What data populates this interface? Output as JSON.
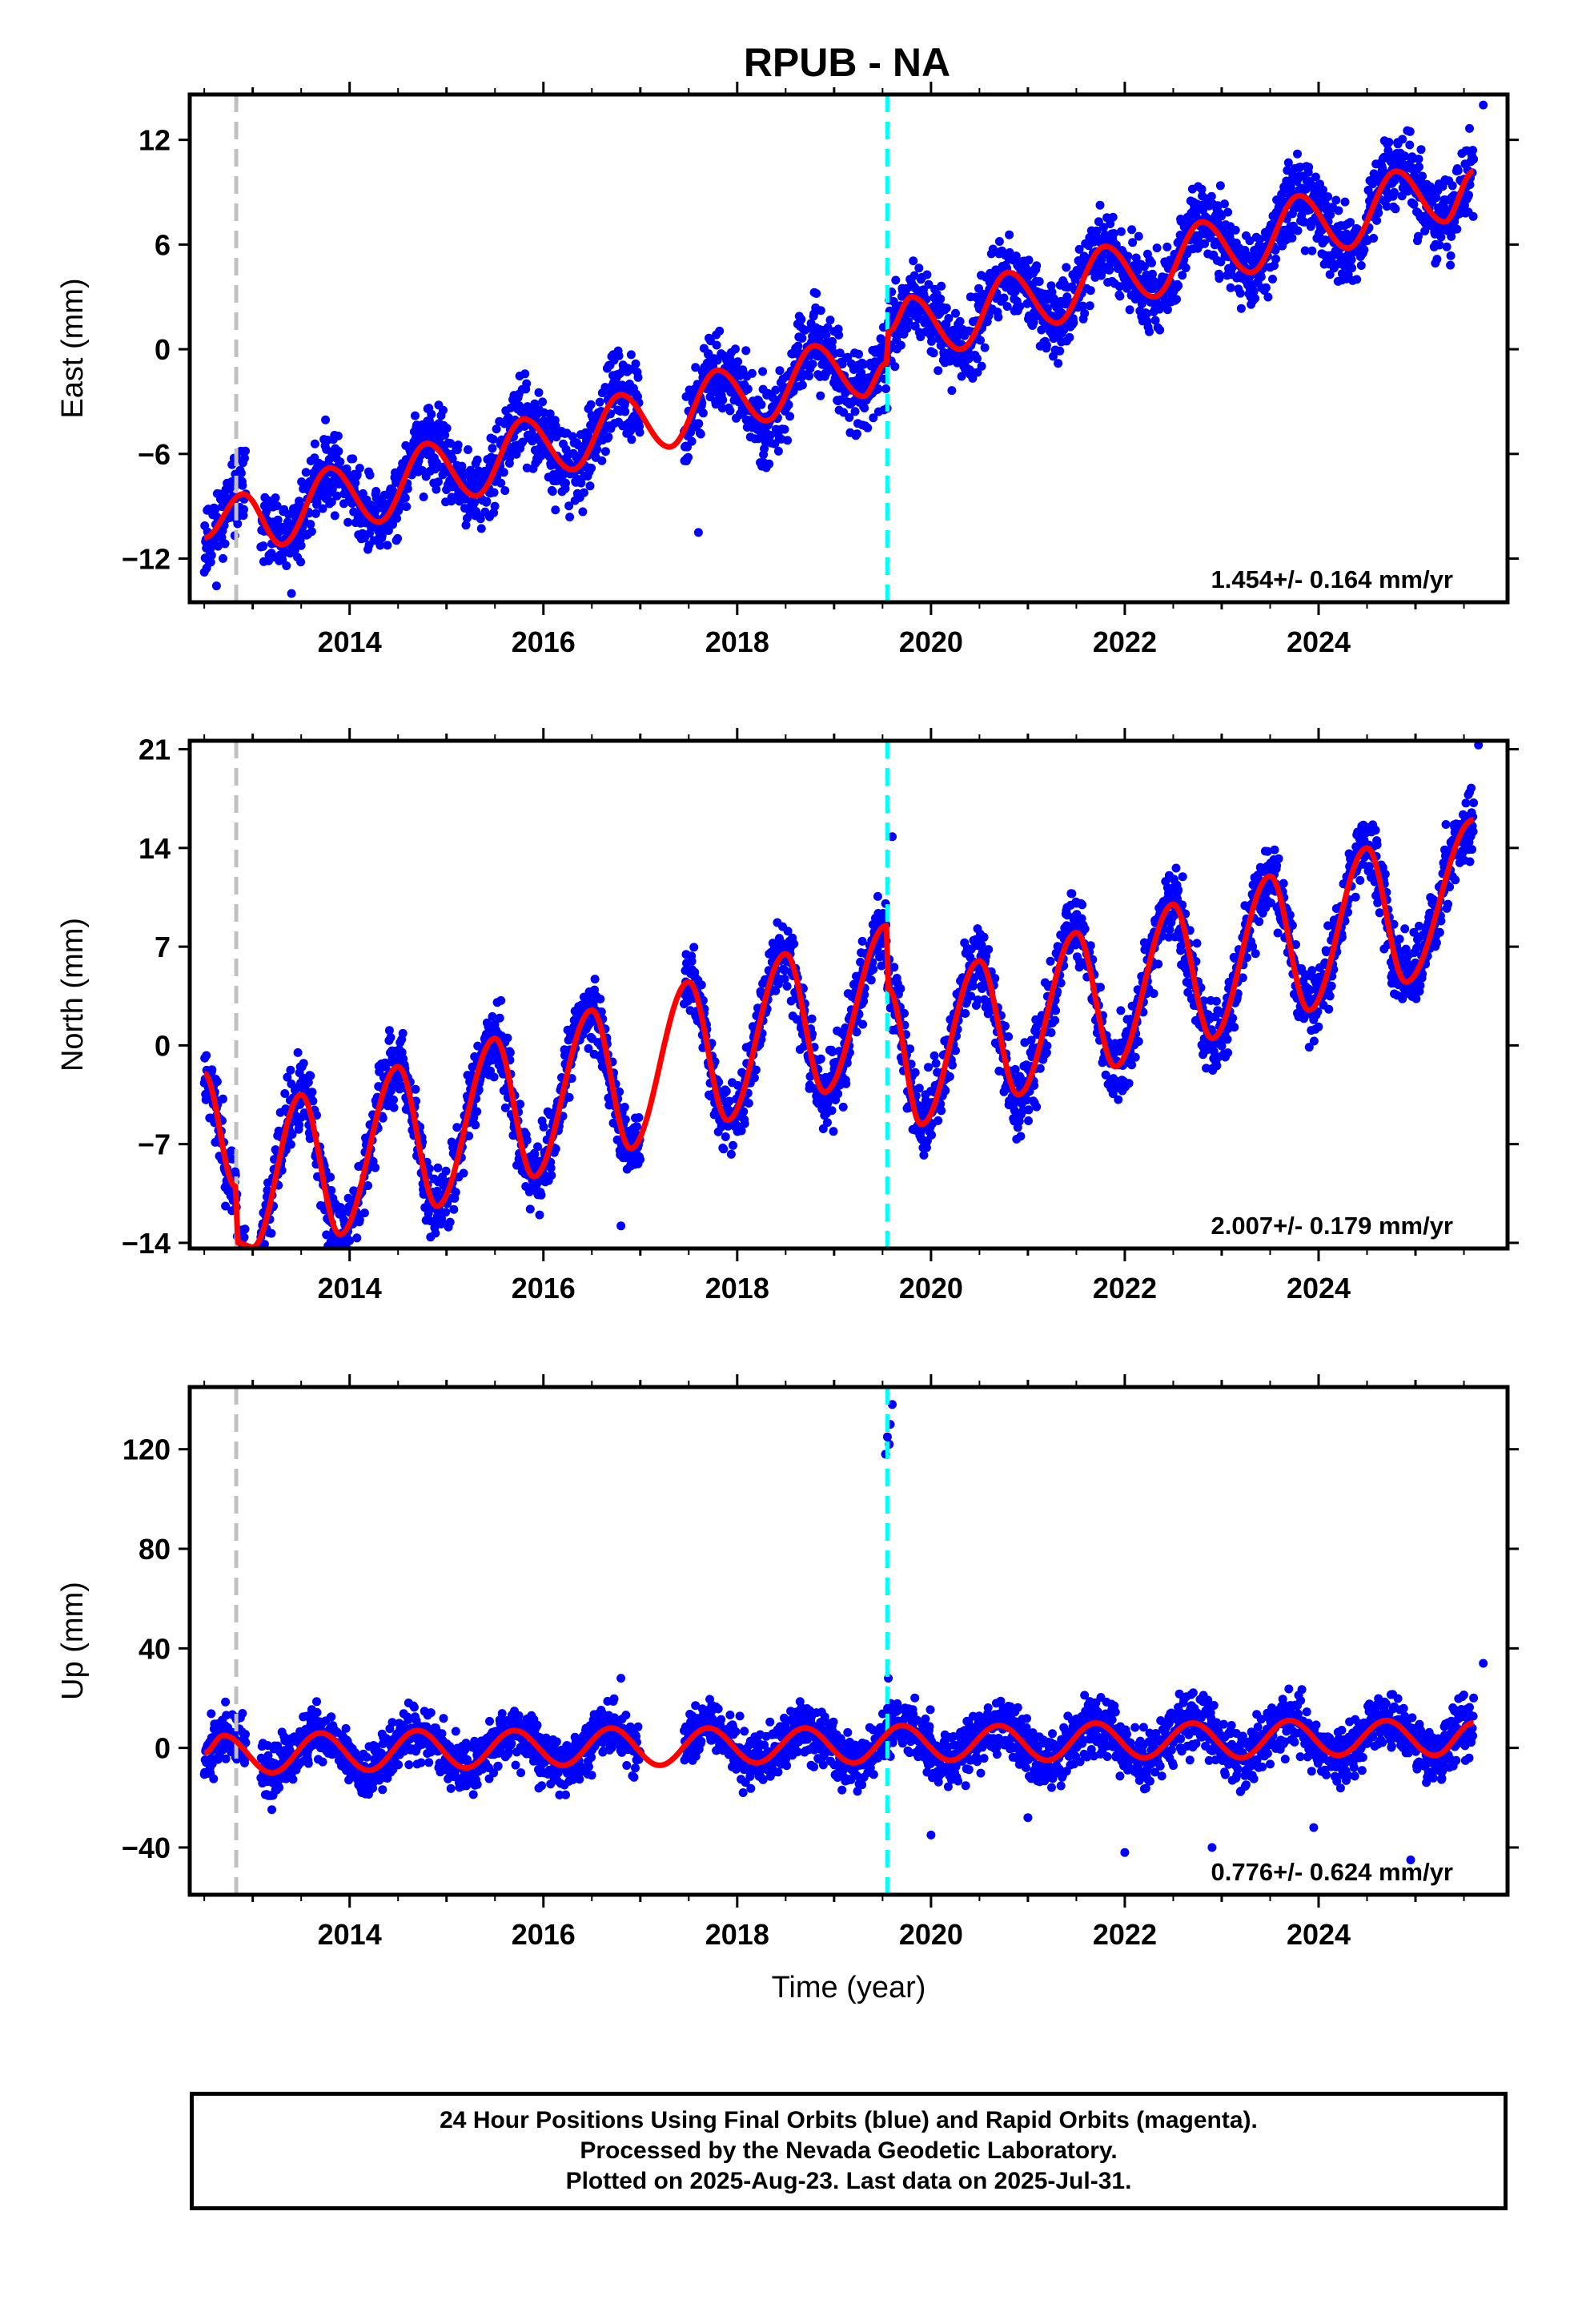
{
  "title": "RPUB - NA",
  "xlabel": "Time (year)",
  "footer": {
    "line1": "24 Hour Positions Using Final Orbits (blue) and Rapid Orbits (magenta).",
    "line2": "Processed by the Nevada Geodetic Laboratory.",
    "line3": "Plotted on 2025-Aug-23. Last data on 2025-Jul-31."
  },
  "colors": {
    "points": "#0000ff",
    "model": "#ff0000",
    "equipment_change": "#00ffff",
    "antenna_change": "#c0c0c0"
  },
  "chart_data": [
    {
      "type": "scatter",
      "component": "East",
      "ylabel": "East (mm)",
      "ylim": [
        -14.5,
        14.6
      ],
      "yticks": [
        -12,
        -6,
        0,
        6,
        12
      ],
      "xlim": [
        2012.35,
        2025.95
      ],
      "xticks": [
        2014,
        2016,
        2018,
        2020,
        2022,
        2024
      ],
      "rate_label": "1.454+/- 0.164 mm/yr",
      "vlines": [
        {
          "x": 2012.83,
          "color": "#c0c0c0"
        },
        {
          "x": 2019.55,
          "color": "#00ffff"
        }
      ],
      "model_x": [
        2012.5,
        2012.9,
        2013.3,
        2013.8,
        2014.3,
        2014.8,
        2015.3,
        2015.8,
        2016.3,
        2016.8,
        2017.3,
        2017.8,
        2018.3,
        2018.8,
        2019.3,
        2019.54,
        2019.56,
        2019.8,
        2020.3,
        2020.8,
        2021.3,
        2021.8,
        2022.3,
        2022.8,
        2023.3,
        2023.8,
        2024.3,
        2024.8,
        2025.3,
        2025.6
      ],
      "model_y": [
        -10.8,
        -8.3,
        -11.2,
        -6.8,
        -9.9,
        -5.4,
        -8.4,
        -4.0,
        -6.9,
        -2.6,
        -5.6,
        -1.2,
        -4.1,
        0.2,
        -2.7,
        -0.8,
        1.0,
        3.0,
        0.0,
        4.4,
        1.5,
        5.9,
        3.0,
        7.3,
        4.4,
        8.8,
        5.8,
        10.2,
        7.3,
        10.2
      ],
      "points_seed": 11,
      "points_noise": 1.1,
      "outliers": [
        {
          "x": 2013.4,
          "y": -14.0
        },
        {
          "x": 2017.6,
          "y": -10.5
        },
        {
          "x": 2025.7,
          "y": 14.0
        }
      ]
    },
    {
      "type": "scatter",
      "component": "North",
      "ylabel": "North (mm)",
      "ylim": [
        -14.4,
        21.6
      ],
      "yticks": [
        -14,
        -7,
        0,
        7,
        14,
        21
      ],
      "xlim": [
        2012.35,
        2025.95
      ],
      "xticks": [
        2014,
        2016,
        2018,
        2020,
        2022,
        2024
      ],
      "rate_label": "2.007+/- 0.179 mm/yr",
      "vlines": [
        {
          "x": 2012.83,
          "color": "#c0c0c0"
        },
        {
          "x": 2019.55,
          "color": "#00ffff"
        }
      ],
      "model_x": [
        2012.5,
        2012.82,
        2012.85,
        2013.0,
        2013.5,
        2013.9,
        2014.5,
        2014.9,
        2015.5,
        2015.9,
        2016.5,
        2016.9,
        2017.5,
        2017.9,
        2018.5,
        2018.9,
        2019.54,
        2019.56,
        2019.9,
        2020.5,
        2020.9,
        2021.5,
        2021.9,
        2022.5,
        2022.9,
        2023.5,
        2023.9,
        2024.5,
        2024.9,
        2025.6
      ],
      "model_y": [
        -2.0,
        -10.0,
        -14.0,
        -14.3,
        -3.5,
        -13.4,
        -1.5,
        -11.4,
        0.5,
        -9.3,
        2.5,
        -7.3,
        4.5,
        -5.3,
        6.5,
        -3.3,
        8.5,
        4.0,
        -5.6,
        6.0,
        -3.5,
        8.0,
        -1.5,
        10.0,
        0.5,
        12.0,
        2.5,
        14.0,
        4.5,
        16.0
      ],
      "points_seed": 23,
      "points_noise": 1.3,
      "outliers": [
        {
          "x": 2019.6,
          "y": 14.8
        },
        {
          "x": 2025.65,
          "y": 21.3
        },
        {
          "x": 2016.8,
          "y": -12.8
        }
      ]
    },
    {
      "type": "scatter",
      "component": "Up",
      "ylabel": "Up (mm)",
      "ylim": [
        -59,
        145
      ],
      "yticks": [
        -40,
        0,
        40,
        80,
        120
      ],
      "xlim": [
        2012.35,
        2025.95
      ],
      "xticks": [
        2014,
        2016,
        2018,
        2020,
        2022,
        2024
      ],
      "rate_label": "0.776+/- 0.624 mm/yr",
      "vlines": [
        {
          "x": 2012.83,
          "color": "#c0c0c0"
        },
        {
          "x": 2019.55,
          "color": "#00ffff"
        }
      ],
      "model_x": [
        2012.5,
        2012.7,
        2013.2,
        2013.7,
        2014.2,
        2014.7,
        2015.2,
        2015.7,
        2016.2,
        2016.7,
        2017.2,
        2017.7,
        2018.2,
        2018.7,
        2019.2,
        2019.7,
        2020.2,
        2020.7,
        2021.2,
        2021.7,
        2022.2,
        2022.7,
        2023.2,
        2023.7,
        2024.2,
        2024.7,
        2025.2,
        2025.6
      ],
      "model_y": [
        -2,
        5,
        -10,
        6,
        -9,
        7,
        -8,
        7,
        -7,
        8,
        -7,
        8,
        -6,
        8,
        -6,
        9,
        -5,
        9,
        -5,
        10,
        -4,
        10,
        -4,
        11,
        -3,
        11,
        -3,
        10
      ],
      "points_seed": 37,
      "points_noise": 5.5,
      "outliers": [
        {
          "x": 2019.55,
          "y": 125
        },
        {
          "x": 2019.57,
          "y": 122
        },
        {
          "x": 2019.6,
          "y": 138
        },
        {
          "x": 2019.58,
          "y": 130
        },
        {
          "x": 2019.53,
          "y": 118
        },
        {
          "x": 2019.56,
          "y": 28
        },
        {
          "x": 2016.8,
          "y": 28
        },
        {
          "x": 2022.0,
          "y": -42
        },
        {
          "x": 2022.9,
          "y": -40
        },
        {
          "x": 2023.95,
          "y": -32
        },
        {
          "x": 2024.95,
          "y": -45
        },
        {
          "x": 2025.7,
          "y": 34
        },
        {
          "x": 2021.0,
          "y": -28
        },
        {
          "x": 2020.0,
          "y": -35
        }
      ]
    }
  ]
}
